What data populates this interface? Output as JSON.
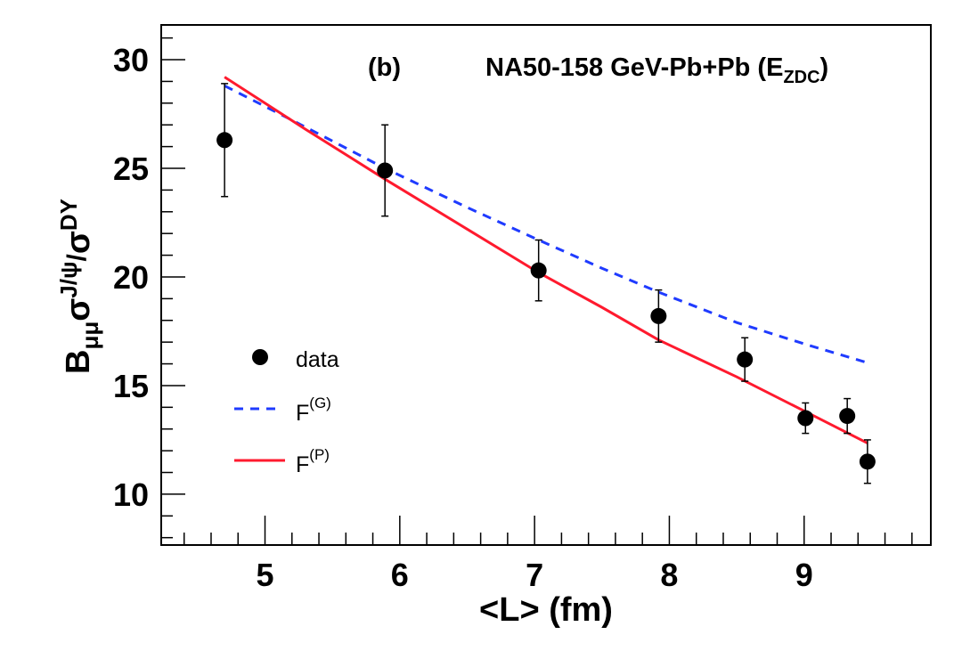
{
  "chart_data": {
    "type": "line",
    "title": "",
    "annotations": {
      "panel": "(b)",
      "experiment": "NA50-158 GeV-Pb+Pb (E",
      "experiment_sub": "ZDC",
      "experiment_close": ")"
    },
    "xlabel": "<L> (fm)",
    "ylabel": {
      "main": "B",
      "sub1": "μμ",
      "sigma": "σ",
      "sup1": "J/ψ",
      "slash": "/",
      "sigma2": "σ",
      "sup2": "DY"
    },
    "xlim": [
      4.23,
      9.94
    ],
    "ylim": [
      7.66,
      31.6
    ],
    "x_ticks": [
      5,
      6,
      7,
      8,
      9
    ],
    "x_tick_labels": [
      "5",
      "6",
      "7",
      "8",
      "9"
    ],
    "y_ticks": [
      10,
      15,
      20,
      25,
      30
    ],
    "y_tick_labels": [
      "10",
      "15",
      "20",
      "25",
      "30"
    ],
    "grid": false,
    "legend": {
      "placement": "center-left",
      "entries": [
        {
          "label": "data",
          "kind": "marker"
        },
        {
          "label": "F",
          "sup": "(G)",
          "kind": "dashed",
          "color": "#1f3bff"
        },
        {
          "label": "F",
          "sup": "(P)",
          "kind": "solid",
          "color": "#ff1a2e"
        }
      ]
    },
    "series": [
      {
        "name": "data",
        "kind": "points",
        "color": "#000000",
        "x": [
          4.7,
          5.89,
          7.03,
          7.92,
          8.56,
          9.01,
          9.32,
          9.47
        ],
        "y": [
          26.3,
          24.9,
          20.3,
          18.2,
          16.2,
          13.5,
          13.6,
          11.5
        ],
        "err_low": [
          23.7,
          22.8,
          18.9,
          17.0,
          15.2,
          12.8,
          12.8,
          10.5
        ],
        "err_high": [
          28.9,
          27.0,
          21.7,
          19.4,
          17.2,
          14.2,
          14.4,
          12.5
        ]
      },
      {
        "name": "F(G)",
        "kind": "dashed",
        "color": "#1f3bff",
        "x": [
          4.7,
          5.3,
          5.89,
          6.5,
          7.03,
          7.5,
          7.92,
          8.5,
          9.01,
          9.47
        ],
        "y": [
          28.8,
          26.9,
          25.0,
          23.2,
          21.7,
          20.4,
          19.3,
          17.9,
          16.9,
          16.05
        ]
      },
      {
        "name": "F(P)",
        "kind": "solid",
        "color": "#ff1a2e",
        "x": [
          4.7,
          5.3,
          5.89,
          6.5,
          7.03,
          7.5,
          7.92,
          8.5,
          9.01,
          9.47
        ],
        "y": [
          29.2,
          26.8,
          24.5,
          22.2,
          20.2,
          18.6,
          17.1,
          15.4,
          13.8,
          12.35
        ]
      }
    ]
  }
}
